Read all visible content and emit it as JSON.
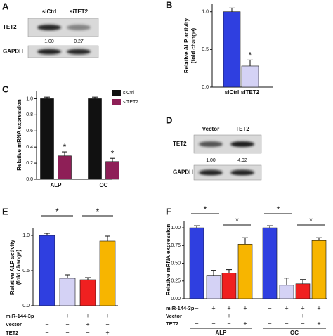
{
  "panels": [
    "A",
    "B",
    "C",
    "D",
    "E",
    "F"
  ],
  "blots": [
    {
      "lanes": [
        "siCtrl",
        "siTET2"
      ],
      "rows": [
        "TET2",
        "GAPDH"
      ],
      "quantification": [
        "1.00",
        "0.27"
      ]
    },
    {
      "lanes": [
        "Vector",
        "TET2"
      ],
      "rows": [
        "TET2",
        "GAPDH"
      ],
      "quantification": [
        "1.00",
        "4.92"
      ]
    }
  ],
  "chart_data": [
    {
      "type": "bar",
      "y_label": [
        "Relative ALP activity",
        "(fold change)"
      ],
      "categories": [
        "siCtrl",
        "siTET2"
      ],
      "values": [
        1.0,
        0.28
      ],
      "errors": [
        0.05,
        0.08
      ],
      "colors": [
        "#2f3fe0",
        "#d4d2f5"
      ],
      "ylim": [
        0,
        1.1
      ],
      "yticks": [
        {
          "value": 0,
          "label": "0.0"
        },
        {
          "value": 0.5,
          "label": "0.5"
        },
        {
          "value": 1,
          "label": "1.0"
        }
      ],
      "annotations": [
        "*"
      ]
    },
    {
      "type": "bar",
      "y_label": [
        "Relative mRNA expression"
      ],
      "categories": [
        "ALP",
        "OC"
      ],
      "series": [
        {
          "name": "siCtrl",
          "color": "#111111",
          "values": [
            1.0,
            1.0
          ],
          "errors": [
            0.02,
            0.02
          ]
        },
        {
          "name": "siTET2",
          "color": "#8e1f57",
          "values": [
            0.29,
            0.22
          ],
          "errors": [
            0.05,
            0.04
          ]
        }
      ],
      "ylim": [
        0,
        1.1
      ],
      "yticks": [
        {
          "value": 0,
          "label": "0.0"
        },
        {
          "value": 0.2,
          "label": "0.2"
        },
        {
          "value": 0.4,
          "label": "0.4"
        },
        {
          "value": 0.6,
          "label": "0.6"
        },
        {
          "value": 0.8,
          "label": "0.8"
        },
        {
          "value": 1,
          "label": "1.0"
        }
      ],
      "legend": "top-right",
      "annotations": [
        "*",
        "*"
      ]
    },
    {
      "type": "bar",
      "y_label": [
        "Relative ALP activity",
        "(fold change)"
      ],
      "values": [
        1.0,
        0.39,
        0.37,
        0.92
      ],
      "errors": [
        0.03,
        0.05,
        0.03,
        0.07
      ],
      "colors": [
        "#2f3fe0",
        "#d4d2f5",
        "#f02020",
        "#f7b500"
      ],
      "ylim": [
        0,
        1.1
      ],
      "yticks": [
        {
          "value": 0,
          "label": "0.0"
        },
        {
          "value": 0.5,
          "label": "0.5"
        },
        {
          "value": 1,
          "label": "1.0"
        }
      ],
      "conditions": [
        {
          "label": "miR-144-3p",
          "values": [
            "−",
            "+",
            "+",
            "+"
          ]
        },
        {
          "label": "Vector",
          "values": [
            "−",
            "−",
            "+",
            "−"
          ]
        },
        {
          "label": "TET2",
          "values": [
            "−",
            "−",
            "−",
            "+"
          ]
        }
      ],
      "annotations": [
        "*",
        "*"
      ]
    },
    {
      "type": "bar",
      "y_label": [
        "Relative mRNA expression"
      ],
      "categories": [
        "ALP",
        "OC"
      ],
      "series": [
        {
          "color": "#2f3fe0",
          "values": [
            1.0,
            1.0
          ],
          "errors": [
            0.03,
            0.03
          ]
        },
        {
          "color": "#d4d2f5",
          "values": [
            0.33,
            0.19
          ],
          "errors": [
            0.07,
            0.1
          ]
        },
        {
          "color": "#f02020",
          "values": [
            0.36,
            0.21
          ],
          "errors": [
            0.05,
            0.06
          ]
        },
        {
          "color": "#f7b500",
          "values": [
            0.77,
            0.82
          ],
          "errors": [
            0.09,
            0.04
          ]
        }
      ],
      "ylim": [
        0,
        1.1
      ],
      "yticks": [
        {
          "value": 0,
          "label": "0.00"
        },
        {
          "value": 0.25,
          "label": "0.25"
        },
        {
          "value": 0.5,
          "label": "0.50"
        },
        {
          "value": 0.75,
          "label": "0.75"
        },
        {
          "value": 1,
          "label": "1.00"
        }
      ],
      "conditions": [
        {
          "label": "miR-144-3p",
          "values": [
            "−",
            "+",
            "+",
            "+",
            "−",
            "+",
            "+",
            "+"
          ]
        },
        {
          "label": "Vector",
          "values": [
            "−",
            "−",
            "+",
            "−",
            "−",
            "−",
            "+",
            "−"
          ]
        },
        {
          "label": "TET2",
          "values": [
            "−",
            "−",
            "−",
            "+",
            "−",
            "−",
            "−",
            "+"
          ]
        }
      ],
      "annotations": [
        "*",
        "*",
        "*",
        "*"
      ]
    }
  ]
}
